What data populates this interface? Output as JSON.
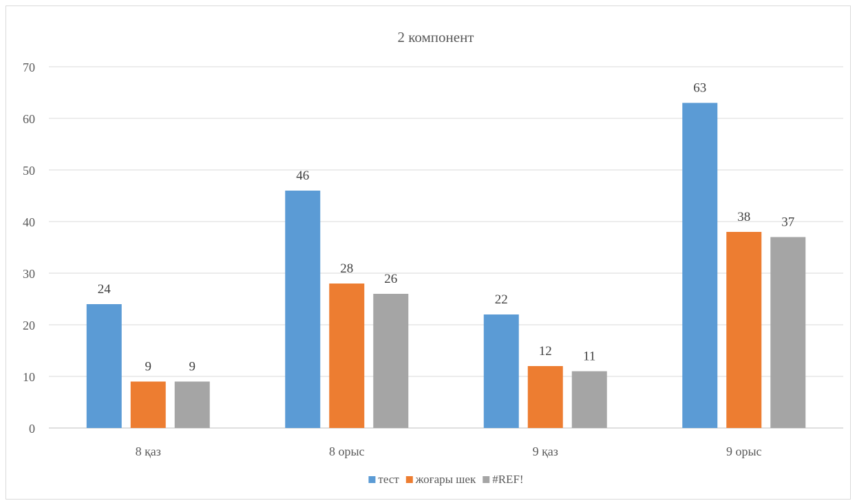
{
  "chart_data": {
    "type": "bar",
    "title": "2 компонент",
    "categories": [
      "8 қаз",
      "8 орыс",
      "9 қаз",
      "9 орыс"
    ],
    "series": [
      {
        "name": "тест",
        "values": [
          24,
          46,
          22,
          63
        ],
        "color": "#5b9bd5"
      },
      {
        "name": "жоғары шек",
        "values": [
          9,
          28,
          12,
          38
        ],
        "color": "#ed7d31"
      },
      {
        "name": "#REF!",
        "values": [
          9,
          26,
          11,
          37
        ],
        "color": "#a5a5a5"
      }
    ],
    "ylim": [
      0,
      70
    ],
    "yticks": [
      0,
      10,
      20,
      30,
      40,
      50,
      60,
      70
    ],
    "grid": true,
    "legend": "bottom",
    "data_labels": true
  }
}
